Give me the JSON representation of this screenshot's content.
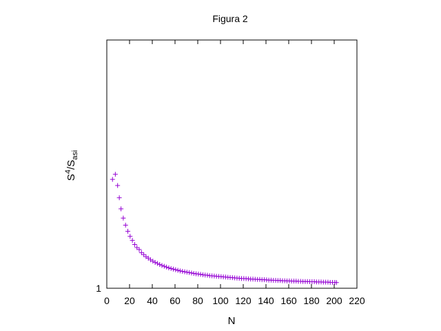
{
  "chart_data": {
    "type": "scatter",
    "title": "Figura 2",
    "xlabel": "N",
    "ylabel": {
      "base": "S",
      "sup": "4",
      "sep": "/S",
      "sub": "asi"
    },
    "xlim": [
      0,
      220
    ],
    "ylim": [
      1,
      2.22
    ],
    "x_ticks": [
      0,
      20,
      40,
      60,
      80,
      100,
      120,
      140,
      160,
      180,
      200,
      220
    ],
    "y_ticks": [
      1
    ],
    "grid": false,
    "marker": "+",
    "marker_color": "#9400d3",
    "series": [
      {
        "x": [
          5,
          7.5,
          9.5,
          11,
          12.5,
          14.5,
          16.5,
          18.5,
          20.5,
          22.5,
          24.5,
          26.5,
          28.5,
          30.5,
          32.5,
          34.5,
          36.5,
          38.5,
          40.5,
          42.5,
          44.5,
          46.5,
          48.5,
          50.5,
          52.5,
          54.5,
          56.5,
          58.5,
          60.5,
          62.5,
          64.5,
          66.5,
          68.5,
          70.5,
          72.5,
          74.5,
          76.5,
          78.5,
          80.5,
          82.5,
          84.5,
          86.5,
          88.5,
          90.5,
          92.5,
          94.5,
          96.5,
          98.5,
          100.5,
          102.5,
          104.5,
          106.5,
          108.5,
          110.5,
          112.5,
          114.5,
          116.5,
          118.5,
          120.5,
          122.5,
          124.5,
          126.5,
          128.5,
          130.5,
          132.5,
          134.5,
          136.5,
          138.5,
          140.5,
          142.5,
          144.5,
          146.5,
          148.5,
          150.5,
          152.5,
          154.5,
          156.5,
          158.5,
          160.5,
          162.5,
          164.5,
          166.5,
          168.5,
          170.5,
          172.5,
          174.5,
          176.5,
          178.5,
          180.5,
          182.5,
          184.5,
          186.5,
          188.5,
          190.5,
          192.5,
          194.5,
          196.5,
          198.5,
          200.5,
          202
        ],
        "y": [
          1.535,
          1.56,
          1.505,
          1.445,
          1.39,
          1.345,
          1.31,
          1.28,
          1.255,
          1.235,
          1.215,
          1.2,
          1.19,
          1.175,
          1.165,
          1.155,
          1.148,
          1.14,
          1.133,
          1.127,
          1.122,
          1.117,
          1.112,
          1.108,
          1.104,
          1.1,
          1.097,
          1.094,
          1.091,
          1.088,
          1.085,
          1.083,
          1.081,
          1.079,
          1.077,
          1.075,
          1.073,
          1.071,
          1.07,
          1.068,
          1.066,
          1.065,
          1.064,
          1.062,
          1.061,
          1.06,
          1.059,
          1.058,
          1.057,
          1.056,
          1.055,
          1.054,
          1.053,
          1.052,
          1.051,
          1.05,
          1.049,
          1.048,
          1.048,
          1.047,
          1.046,
          1.045,
          1.045,
          1.044,
          1.043,
          1.043,
          1.042,
          1.042,
          1.041,
          1.04,
          1.04,
          1.039,
          1.039,
          1.038,
          1.038,
          1.037,
          1.037,
          1.036,
          1.036,
          1.035,
          1.035,
          1.035,
          1.034,
          1.034,
          1.033,
          1.033,
          1.033,
          1.032,
          1.032,
          1.032,
          1.031,
          1.031,
          1.031,
          1.03,
          1.03,
          1.03,
          1.029,
          1.029,
          1.029,
          1.028
        ]
      }
    ]
  }
}
